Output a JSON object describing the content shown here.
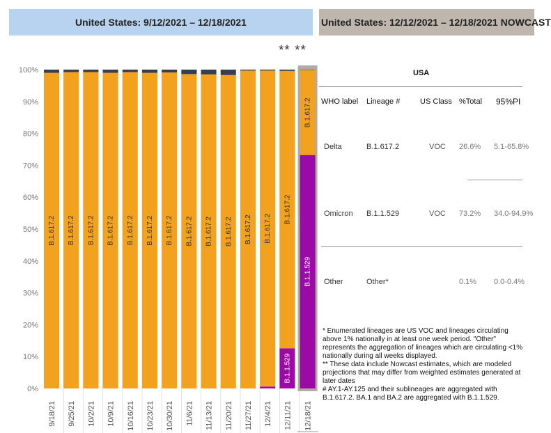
{
  "header_left": "United States: 9/12/2021 – 12/18/2021",
  "header_right": "United States: 12/12/2021 – 12/18/2021 NOWCAST",
  "nowcast_marker": "** **",
  "chart_data": {
    "type": "bar",
    "stacked": true,
    "categories": [
      "9/18/21",
      "9/25/21",
      "10/2/21",
      "10/9/21",
      "10/16/21",
      "10/23/21",
      "10/30/21",
      "11/6/21",
      "11/13/21",
      "11/20/21",
      "11/27/21",
      "12/4/21",
      "12/11/21",
      "12/18/21"
    ],
    "series": [
      {
        "name": "B.1.1.529",
        "color": "#9b0aa5",
        "values": [
          0,
          0,
          0,
          0,
          0,
          0,
          0,
          0,
          0,
          0,
          0,
          0.6,
          12.6,
          73.2
        ]
      },
      {
        "name": "B.1.617.2",
        "color": "#f2a21f",
        "values": [
          99.0,
          99.2,
          99.2,
          99.0,
          99.2,
          99.0,
          99.1,
          98.6,
          98.5,
          98.3,
          99.7,
          99.1,
          87.0,
          26.6
        ]
      },
      {
        "name": "Other",
        "color": "#363f50",
        "values": [
          1.0,
          0.8,
          0.8,
          1.0,
          0.8,
          1.0,
          0.9,
          1.4,
          1.5,
          1.7,
          0.3,
          0.3,
          0.4,
          0.1
        ]
      }
    ],
    "bar_labels": [
      [
        "",
        "B.1.617.2"
      ],
      [
        "",
        "B.1.617.2"
      ],
      [
        "",
        "B.1.617.2"
      ],
      [
        "",
        "B.1.617.2"
      ],
      [
        "",
        "B.1.617.2"
      ],
      [
        "",
        "B.1.617.2"
      ],
      [
        "",
        "B.1.617.2"
      ],
      [
        "",
        "B.1.617.2"
      ],
      [
        "",
        "B.1.617.2"
      ],
      [
        "",
        "B.1.617.2"
      ],
      [
        "",
        "B.1.617.2"
      ],
      [
        "",
        "B.1.617.2"
      ],
      [
        "B.1.1.529",
        "B.1.617.2"
      ],
      [
        "B.1.1.529",
        "B.1.617.2"
      ]
    ],
    "yticks": [
      "0%",
      "10%",
      "20%",
      "30%",
      "40%",
      "50%",
      "60%",
      "70%",
      "80%",
      "90%",
      "100%"
    ],
    "ylim": [
      0,
      100
    ]
  },
  "table": {
    "title": "USA",
    "headers": [
      "WHO label",
      "Lineage #",
      "US Class",
      "%Total",
      "95%PI"
    ],
    "rows": [
      [
        "Delta",
        "B.1.617.2",
        "VOC",
        "26.6%",
        "5.1-65.8%"
      ],
      [
        "Omicron",
        "B.1.1.529",
        "VOC",
        "73.2%",
        "34.0-94.9%"
      ],
      [
        "Other",
        "Other*",
        "",
        "0.1%",
        "0.0-0.4%"
      ]
    ]
  },
  "notes": [
    "*     Enumerated lineages are US VOC and lineages circulating above 1% nationally in at least one week period. \"Other\" represents the aggregation of lineages which are circulating <1% nationally during all weeks displayed.",
    "**    These data include Nowcast estimates, which are modeled projections that may differ from weighted estimates generated at later dates",
    "#     AY.1-AY.125 and their sublineages are aggregated with B.1.617.2. BA.1 and BA.2 are aggregated with B.1.1.529."
  ]
}
